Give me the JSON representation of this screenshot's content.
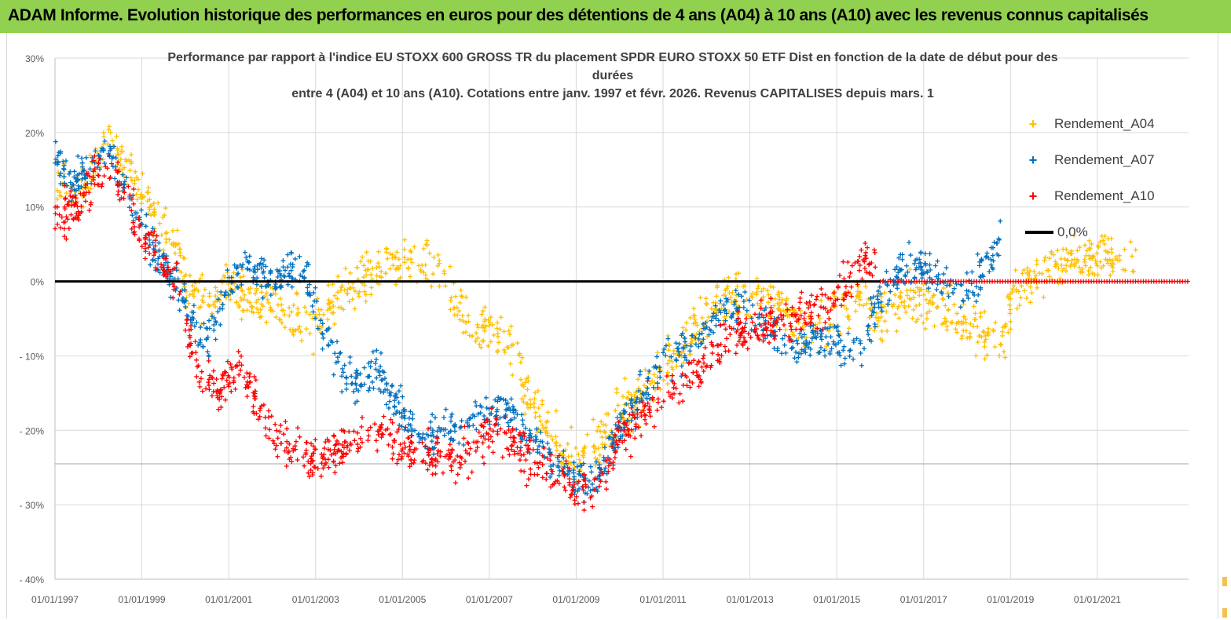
{
  "header": {
    "title": "ADAM Informe. Evolution historique des performances en euros pour des détentions de 4 ans (A04) à 10 ans (A10) avec les revenus connus capitalisés"
  },
  "chart_data": {
    "type": "scatter",
    "title_lines": [
      "Performance par rapport à l'indice EU STOXX 600 GROSS TR  du placement SPDR EURO STOXX 50 ETF Dist en fonction de la date de début pour des",
      "durées",
      "entre 4 (A04) et 10 ans (A10).  Cotations entre janv. 1997 et févr.  2026. Revenus CAPITALISES depuis mars. 1"
    ],
    "ylim": [
      -40,
      30
    ],
    "y_ticks": [
      30,
      20,
      10,
      0,
      -10,
      -20,
      -30,
      -40
    ],
    "y_tick_labels": [
      "30%",
      "20%",
      "10%",
      "0%",
      "- 10%",
      "- 20%",
      "- 30%",
      "- 40%"
    ],
    "xlim": [
      1997.0,
      2023.1
    ],
    "x_ticks": [
      1997,
      1999,
      2001,
      2003,
      2005,
      2007,
      2009,
      2011,
      2013,
      2015,
      2017,
      2019,
      2021
    ],
    "x_tick_labels": [
      "01/01/1997",
      "01/01/1999",
      "01/01/2001",
      "01/01/2003",
      "01/01/2005",
      "01/01/2007",
      "01/01/2009",
      "01/01/2011",
      "01/01/2013",
      "01/01/2015",
      "01/01/2017",
      "01/01/2019",
      "01/01/2021"
    ],
    "legend": {
      "position": "right",
      "entries": [
        "Rendement_A04",
        "Rendement_A07",
        "Rendement_A10",
        "0,0%"
      ]
    },
    "colors": {
      "A04": "#ffc000",
      "A07": "#0070c0",
      "A10": "#ff0000",
      "zero": "#000000",
      "grid": "#d9d9d9"
    },
    "series": [
      {
        "name": "Rendement_A04",
        "key": "A04",
        "trend_x": [
          1997.0,
          1997.5,
          1997.9,
          1998.2,
          1998.6,
          1999.0,
          1999.4,
          1999.7,
          2000.0,
          2000.5,
          2001.0,
          2001.5,
          2002.0,
          2002.5,
          2003.0,
          2003.5,
          2004.0,
          2004.5,
          2005.0,
          2005.5,
          2005.9,
          2006.3,
          2006.7,
          2007.0,
          2007.5,
          2007.8,
          2008.2,
          2008.6,
          2009.0,
          2009.5,
          2010.0,
          2010.5,
          2011.0,
          2011.5,
          2012.0,
          2012.5,
          2013.0,
          2013.5,
          2014.0,
          2014.5,
          2015.0,
          2015.5,
          2016.0,
          2016.3,
          2016.7,
          2017.0,
          2017.5,
          2018.0,
          2018.5,
          2018.8,
          2019.0,
          2019.5,
          2020.0,
          2020.5,
          2021.0,
          2021.5,
          2021.9
        ],
        "trend_y": [
          14,
          12,
          15,
          19,
          16,
          11,
          8,
          6,
          0,
          -3,
          -1,
          -2,
          -3,
          -5,
          -6,
          -3,
          0,
          2,
          3,
          2,
          1,
          -4,
          -7,
          -6,
          -9,
          -14,
          -19,
          -22,
          -24,
          -22,
          -18,
          -15,
          -12,
          -8,
          -5,
          -2,
          -3,
          -2,
          -5,
          -7,
          -4,
          -2,
          -5,
          -3,
          -2,
          -3,
          -4,
          -5,
          -7,
          -9,
          -3,
          1,
          2,
          3,
          3,
          3,
          3
        ],
        "spread": 2.8,
        "x_range": [
          1997.0,
          2021.9
        ]
      },
      {
        "name": "Rendement_A07",
        "key": "A07",
        "trend_x": [
          1997.0,
          1997.4,
          1997.8,
          1998.2,
          1998.6,
          1999.0,
          1999.4,
          1999.8,
          2000.2,
          2000.6,
          2001.0,
          2001.5,
          2002.0,
          2002.4,
          2002.8,
          2003.2,
          2003.6,
          2004.0,
          2004.4,
          2004.8,
          2005.2,
          2005.6,
          2006.0,
          2006.5,
          2007.0,
          2007.5,
          2008.0,
          2008.5,
          2009.0,
          2009.5,
          2010.0,
          2010.5,
          2011.0,
          2011.5,
          2012.0,
          2012.5,
          2013.0,
          2013.5,
          2014.0,
          2014.5,
          2015.0,
          2015.5,
          2016.0,
          2016.5,
          2017.0,
          2017.5,
          2018.0,
          2018.5,
          2018.8
        ],
        "trend_y": [
          17,
          13,
          15,
          18,
          12,
          7,
          3,
          0,
          -6,
          -8,
          0,
          2,
          0,
          2,
          0,
          -7,
          -12,
          -14,
          -12,
          -16,
          -19,
          -21,
          -20,
          -19,
          -17,
          -18,
          -22,
          -24,
          -27,
          -26,
          -20,
          -15,
          -11,
          -9,
          -7,
          -3,
          -5,
          -6,
          -9,
          -7,
          -8,
          -10,
          -2,
          2,
          2,
          0,
          -2,
          3,
          6
        ],
        "spread": 2.3,
        "x_range": [
          1997.0,
          2018.8
        ]
      },
      {
        "name": "Rendement_A10",
        "key": "A10",
        "trend_x": [
          1997.0,
          1997.4,
          1997.8,
          1998.2,
          1998.6,
          1999.0,
          1999.4,
          1999.8,
          2000.1,
          2000.4,
          2000.8,
          2001.2,
          2001.6,
          2002.0,
          2002.5,
          2003.0,
          2003.5,
          2004.0,
          2004.5,
          2005.0,
          2005.5,
          2006.0,
          2006.5,
          2007.0,
          2007.5,
          2008.0,
          2008.5,
          2009.0,
          2009.5,
          2010.0,
          2010.5,
          2011.0,
          2011.5,
          2012.0,
          2012.5,
          2013.0,
          2013.5,
          2014.0,
          2014.5,
          2015.0,
          2015.5,
          2015.9
        ],
        "trend_y": [
          8,
          10,
          12,
          16,
          12,
          6,
          3,
          0,
          -8,
          -13,
          -15,
          -11,
          -16,
          -21,
          -22,
          -24,
          -23,
          -21,
          -20,
          -22,
          -23,
          -24,
          -23,
          -20,
          -22,
          -24,
          -26,
          -28,
          -27,
          -21,
          -18,
          -15,
          -13,
          -11,
          -8,
          -7,
          -5,
          -6,
          -4,
          -2,
          2,
          3
        ],
        "spread": 2.5,
        "x_range": [
          1997.0,
          2015.9
        ],
        "tail_zero_from": 2016.0
      }
    ],
    "zero_line": {
      "label": "0,0%",
      "value": 0
    }
  }
}
